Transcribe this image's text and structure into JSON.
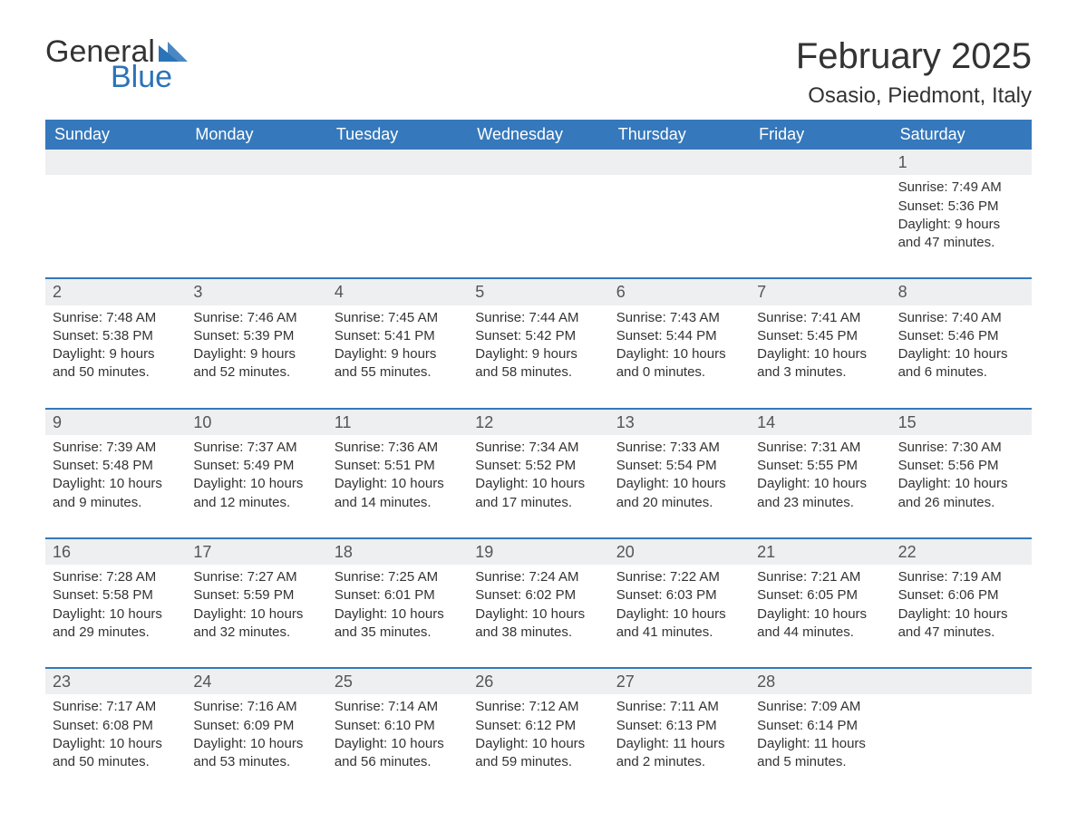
{
  "logo": {
    "word1": "General",
    "word2": "Blue",
    "triangle_color": "#2b73b8",
    "text_color_1": "#333333",
    "text_color_2": "#2b73b8"
  },
  "title": "February 2025",
  "location": "Osasio, Piedmont, Italy",
  "colors": {
    "header_bg": "#3578bc",
    "header_text": "#ffffff",
    "band_bg": "#edeff1",
    "rule": "#3578bc",
    "body_text": "#333333",
    "page_bg": "#ffffff"
  },
  "fonts": {
    "title_size_pt": 30,
    "location_size_pt": 18,
    "weekday_size_pt": 14,
    "daynum_size_pt": 14,
    "body_size_pt": 11
  },
  "layout": {
    "columns": 7,
    "weeks": 5,
    "start_day_index": 6
  },
  "weekdays": [
    "Sunday",
    "Monday",
    "Tuesday",
    "Wednesday",
    "Thursday",
    "Friday",
    "Saturday"
  ],
  "weeks": [
    [
      {
        "empty": true
      },
      {
        "empty": true
      },
      {
        "empty": true
      },
      {
        "empty": true
      },
      {
        "empty": true
      },
      {
        "empty": true
      },
      {
        "day": "1",
        "sunrise": "Sunrise: 7:49 AM",
        "sunset": "Sunset: 5:36 PM",
        "daylight": "Daylight: 9 hours and 47 minutes."
      }
    ],
    [
      {
        "day": "2",
        "sunrise": "Sunrise: 7:48 AM",
        "sunset": "Sunset: 5:38 PM",
        "daylight": "Daylight: 9 hours and 50 minutes."
      },
      {
        "day": "3",
        "sunrise": "Sunrise: 7:46 AM",
        "sunset": "Sunset: 5:39 PM",
        "daylight": "Daylight: 9 hours and 52 minutes."
      },
      {
        "day": "4",
        "sunrise": "Sunrise: 7:45 AM",
        "sunset": "Sunset: 5:41 PM",
        "daylight": "Daylight: 9 hours and 55 minutes."
      },
      {
        "day": "5",
        "sunrise": "Sunrise: 7:44 AM",
        "sunset": "Sunset: 5:42 PM",
        "daylight": "Daylight: 9 hours and 58 minutes."
      },
      {
        "day": "6",
        "sunrise": "Sunrise: 7:43 AM",
        "sunset": "Sunset: 5:44 PM",
        "daylight": "Daylight: 10 hours and 0 minutes."
      },
      {
        "day": "7",
        "sunrise": "Sunrise: 7:41 AM",
        "sunset": "Sunset: 5:45 PM",
        "daylight": "Daylight: 10 hours and 3 minutes."
      },
      {
        "day": "8",
        "sunrise": "Sunrise: 7:40 AM",
        "sunset": "Sunset: 5:46 PM",
        "daylight": "Daylight: 10 hours and 6 minutes."
      }
    ],
    [
      {
        "day": "9",
        "sunrise": "Sunrise: 7:39 AM",
        "sunset": "Sunset: 5:48 PM",
        "daylight": "Daylight: 10 hours and 9 minutes."
      },
      {
        "day": "10",
        "sunrise": "Sunrise: 7:37 AM",
        "sunset": "Sunset: 5:49 PM",
        "daylight": "Daylight: 10 hours and 12 minutes."
      },
      {
        "day": "11",
        "sunrise": "Sunrise: 7:36 AM",
        "sunset": "Sunset: 5:51 PM",
        "daylight": "Daylight: 10 hours and 14 minutes."
      },
      {
        "day": "12",
        "sunrise": "Sunrise: 7:34 AM",
        "sunset": "Sunset: 5:52 PM",
        "daylight": "Daylight: 10 hours and 17 minutes."
      },
      {
        "day": "13",
        "sunrise": "Sunrise: 7:33 AM",
        "sunset": "Sunset: 5:54 PM",
        "daylight": "Daylight: 10 hours and 20 minutes."
      },
      {
        "day": "14",
        "sunrise": "Sunrise: 7:31 AM",
        "sunset": "Sunset: 5:55 PM",
        "daylight": "Daylight: 10 hours and 23 minutes."
      },
      {
        "day": "15",
        "sunrise": "Sunrise: 7:30 AM",
        "sunset": "Sunset: 5:56 PM",
        "daylight": "Daylight: 10 hours and 26 minutes."
      }
    ],
    [
      {
        "day": "16",
        "sunrise": "Sunrise: 7:28 AM",
        "sunset": "Sunset: 5:58 PM",
        "daylight": "Daylight: 10 hours and 29 minutes."
      },
      {
        "day": "17",
        "sunrise": "Sunrise: 7:27 AM",
        "sunset": "Sunset: 5:59 PM",
        "daylight": "Daylight: 10 hours and 32 minutes."
      },
      {
        "day": "18",
        "sunrise": "Sunrise: 7:25 AM",
        "sunset": "Sunset: 6:01 PM",
        "daylight": "Daylight: 10 hours and 35 minutes."
      },
      {
        "day": "19",
        "sunrise": "Sunrise: 7:24 AM",
        "sunset": "Sunset: 6:02 PM",
        "daylight": "Daylight: 10 hours and 38 minutes."
      },
      {
        "day": "20",
        "sunrise": "Sunrise: 7:22 AM",
        "sunset": "Sunset: 6:03 PM",
        "daylight": "Daylight: 10 hours and 41 minutes."
      },
      {
        "day": "21",
        "sunrise": "Sunrise: 7:21 AM",
        "sunset": "Sunset: 6:05 PM",
        "daylight": "Daylight: 10 hours and 44 minutes."
      },
      {
        "day": "22",
        "sunrise": "Sunrise: 7:19 AM",
        "sunset": "Sunset: 6:06 PM",
        "daylight": "Daylight: 10 hours and 47 minutes."
      }
    ],
    [
      {
        "day": "23",
        "sunrise": "Sunrise: 7:17 AM",
        "sunset": "Sunset: 6:08 PM",
        "daylight": "Daylight: 10 hours and 50 minutes."
      },
      {
        "day": "24",
        "sunrise": "Sunrise: 7:16 AM",
        "sunset": "Sunset: 6:09 PM",
        "daylight": "Daylight: 10 hours and 53 minutes."
      },
      {
        "day": "25",
        "sunrise": "Sunrise: 7:14 AM",
        "sunset": "Sunset: 6:10 PM",
        "daylight": "Daylight: 10 hours and 56 minutes."
      },
      {
        "day": "26",
        "sunrise": "Sunrise: 7:12 AM",
        "sunset": "Sunset: 6:12 PM",
        "daylight": "Daylight: 10 hours and 59 minutes."
      },
      {
        "day": "27",
        "sunrise": "Sunrise: 7:11 AM",
        "sunset": "Sunset: 6:13 PM",
        "daylight": "Daylight: 11 hours and 2 minutes."
      },
      {
        "day": "28",
        "sunrise": "Sunrise: 7:09 AM",
        "sunset": "Sunset: 6:14 PM",
        "daylight": "Daylight: 11 hours and 5 minutes."
      },
      {
        "empty": true
      }
    ]
  ]
}
